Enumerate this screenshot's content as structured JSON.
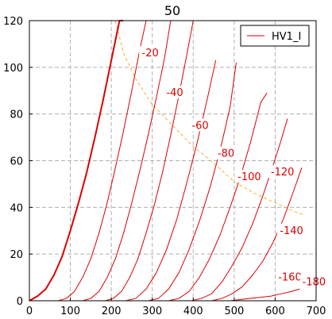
{
  "chart_data": {
    "type": "line",
    "title": "50",
    "xlabel": "",
    "ylabel": "",
    "xlim": [
      0,
      700
    ],
    "ylim": [
      0,
      120
    ],
    "xticks": [
      0,
      100,
      200,
      300,
      400,
      500,
      600,
      700
    ],
    "yticks": [
      0,
      20,
      40,
      60,
      80,
      100,
      120
    ],
    "grid": true,
    "legend": {
      "position": "top-right",
      "entries": [
        "HV1_I"
      ]
    },
    "colors": {
      "curve": "#dd0000",
      "bold_curve": "#dd0000",
      "load_line": "#f2b233",
      "grid": "#b0b0b0"
    },
    "series": [
      {
        "name": "HV1_I",
        "grid_voltage": "0",
        "bold": true,
        "points": [
          [
            0,
            0
          ],
          [
            20,
            2
          ],
          [
            40,
            5
          ],
          [
            60,
            11
          ],
          [
            80,
            19
          ],
          [
            100,
            30
          ],
          [
            120,
            42
          ],
          [
            140,
            55
          ],
          [
            160,
            70
          ],
          [
            180,
            86
          ],
          [
            200,
            103
          ],
          [
            220,
            120
          ],
          [
            229,
            120
          ]
        ]
      },
      {
        "grid_voltage": "-20",
        "bold": false,
        "points": [
          [
            70,
            0
          ],
          [
            90,
            1
          ],
          [
            110,
            4
          ],
          [
            130,
            10
          ],
          [
            150,
            18
          ],
          [
            170,
            29
          ],
          [
            190,
            42
          ],
          [
            210,
            57
          ],
          [
            230,
            73
          ],
          [
            250,
            90
          ],
          [
            270,
            108
          ],
          [
            285,
            120
          ]
        ]
      },
      {
        "grid_voltage": "-40",
        "bold": false,
        "points": [
          [
            130,
            0
          ],
          [
            150,
            1
          ],
          [
            170,
            4
          ],
          [
            190,
            10
          ],
          [
            210,
            18
          ],
          [
            230,
            29
          ],
          [
            250,
            42
          ],
          [
            270,
            56
          ],
          [
            290,
            71
          ],
          [
            310,
            87
          ],
          [
            330,
            104
          ],
          [
            345,
            120
          ]
        ]
      },
      {
        "grid_voltage": "-60",
        "bold": false,
        "points": [
          [
            185,
            0
          ],
          [
            205,
            1
          ],
          [
            225,
            4
          ],
          [
            245,
            10
          ],
          [
            265,
            18
          ],
          [
            285,
            29
          ],
          [
            305,
            41
          ],
          [
            325,
            55
          ],
          [
            345,
            71
          ],
          [
            365,
            88
          ],
          [
            385,
            106
          ],
          [
            400,
            120
          ]
        ]
      },
      {
        "grid_voltage": "-80",
        "bold": false,
        "points": [
          [
            235,
            0
          ],
          [
            260,
            1
          ],
          [
            285,
            5
          ],
          [
            310,
            12
          ],
          [
            335,
            22
          ],
          [
            360,
            35
          ],
          [
            385,
            51
          ],
          [
            410,
            68
          ],
          [
            435,
            87
          ],
          [
            455,
            103
          ]
        ]
      },
      {
        "grid_voltage": "-100",
        "bold": false,
        "points": [
          [
            290,
            0
          ],
          [
            315,
            1
          ],
          [
            340,
            5
          ],
          [
            365,
            12
          ],
          [
            390,
            22
          ],
          [
            415,
            34
          ],
          [
            440,
            48
          ],
          [
            465,
            64
          ],
          [
            490,
            83
          ],
          [
            505,
            102
          ]
        ]
      },
      {
        "grid_voltage": "-120",
        "bold": false,
        "points": [
          [
            340,
            0
          ],
          [
            365,
            1
          ],
          [
            390,
            4
          ],
          [
            415,
            10
          ],
          [
            440,
            18
          ],
          [
            465,
            28
          ],
          [
            490,
            40
          ],
          [
            515,
            53
          ],
          [
            540,
            68
          ],
          [
            565,
            85
          ],
          [
            580,
            89
          ]
        ]
      },
      {
        "grid_voltage": "-140",
        "bold": false,
        "points": [
          [
            395,
            0
          ],
          [
            420,
            1
          ],
          [
            445,
            3
          ],
          [
            470,
            8
          ],
          [
            495,
            15
          ],
          [
            520,
            23
          ],
          [
            545,
            33
          ],
          [
            570,
            45
          ],
          [
            595,
            58
          ],
          [
            615,
            69
          ],
          [
            630,
            78
          ]
        ]
      },
      {
        "grid_voltage": "-160",
        "bold": false,
        "points": [
          [
            445,
            0
          ],
          [
            470,
            1
          ],
          [
            495,
            3
          ],
          [
            520,
            6
          ],
          [
            545,
            11
          ],
          [
            570,
            17
          ],
          [
            595,
            25
          ],
          [
            620,
            35
          ],
          [
            645,
            47
          ],
          [
            665,
            57
          ]
        ]
      },
      {
        "grid_voltage": "-180",
        "bold": false,
        "points": [
          [
            490,
            0
          ],
          [
            515,
            0.5
          ],
          [
            540,
            1
          ],
          [
            565,
            1.5
          ],
          [
            590,
            2
          ],
          [
            615,
            3
          ],
          [
            640,
            4
          ],
          [
            660,
            5
          ]
        ]
      }
    ],
    "load_line": {
      "points": [
        [
          210,
          120
        ],
        [
          230,
          106
        ],
        [
          260,
          95
        ],
        [
          300,
          84
        ],
        [
          350,
          75
        ],
        [
          400,
          66
        ],
        [
          450,
          59
        ],
        [
          500,
          51
        ],
        [
          550,
          46
        ],
        [
          600,
          42
        ],
        [
          650,
          38
        ],
        [
          668,
          37
        ]
      ]
    },
    "curve_labels": [
      {
        "text": "-20",
        "x": 295,
        "y": 106
      },
      {
        "text": "-40",
        "x": 355,
        "y": 89
      },
      {
        "text": "-60",
        "x": 417,
        "y": 75
      },
      {
        "text": "-80",
        "x": 480,
        "y": 63
      },
      {
        "text": "-100",
        "x": 537,
        "y": 53
      },
      {
        "text": "-120",
        "x": 618,
        "y": 55
      },
      {
        "text": "-140",
        "x": 640,
        "y": 30
      },
      {
        "text": "-160",
        "x": 636,
        "y": 10
      },
      {
        "text": "-180",
        "x": 695,
        "y": 8
      }
    ]
  }
}
